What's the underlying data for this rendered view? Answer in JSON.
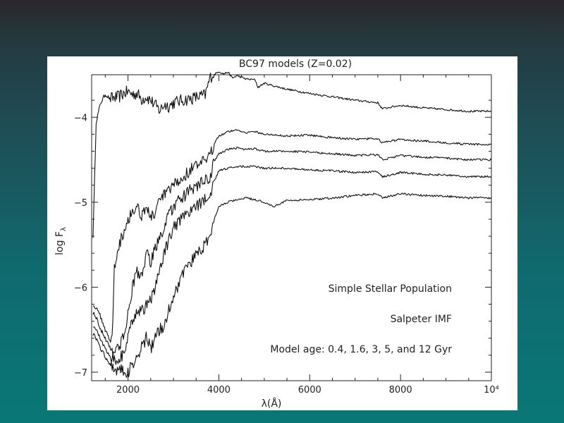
{
  "chart_data": {
    "type": "line",
    "title": "BC97 models (Z=0.02)",
    "xlabel": "λ(Å)",
    "ylabel": "log F",
    "ylabel_sub": "λ",
    "xlim": [
      1200,
      10000
    ],
    "ylim": [
      -7.1,
      -3.5
    ],
    "x_ticks": [
      {
        "value": 2000,
        "label": "2000"
      },
      {
        "value": 4000,
        "label": "4000"
      },
      {
        "value": 6000,
        "label": "6000"
      },
      {
        "value": 8000,
        "label": "8000"
      },
      {
        "value": 10000,
        "label": "10⁴"
      }
    ],
    "y_ticks": [
      {
        "value": -4,
        "label": "−4"
      },
      {
        "value": -5,
        "label": "−5"
      },
      {
        "value": -6,
        "label": "−6"
      },
      {
        "value": -7,
        "label": "−7"
      }
    ],
    "annotations": [
      "Simple Stellar Population",
      "Salpeter IMF",
      "Model age: 0.4, 1.6, 3, 5, and 12 Gyr"
    ],
    "series": [
      {
        "x": [
          1230,
          1300,
          1400,
          1500,
          1600,
          1700,
          1800,
          1900,
          2000,
          2100,
          2200,
          2300,
          2400,
          2500,
          2600,
          2700,
          2800,
          2900,
          3000,
          3200,
          3400,
          3600,
          3700,
          3800,
          3850,
          3900,
          4000,
          4100,
          4200,
          4300,
          4400,
          4600,
          4800,
          4861,
          5000,
          5200,
          5500,
          6000,
          6500,
          7000,
          7500,
          7600,
          8000,
          8500,
          9000,
          9500,
          10000
        ],
        "y": [
          -5.4,
          -4.05,
          -3.83,
          -3.73,
          -3.78,
          -3.77,
          -3.76,
          -3.72,
          -3.7,
          -3.73,
          -3.72,
          -3.79,
          -3.76,
          -3.8,
          -3.86,
          -3.92,
          -3.85,
          -3.87,
          -3.83,
          -3.8,
          -3.78,
          -3.75,
          -3.74,
          -3.55,
          -3.5,
          -3.5,
          -3.46,
          -3.49,
          -3.47,
          -3.54,
          -3.51,
          -3.55,
          -3.56,
          -3.65,
          -3.6,
          -3.63,
          -3.67,
          -3.72,
          -3.76,
          -3.8,
          -3.83,
          -3.9,
          -3.86,
          -3.89,
          -3.91,
          -3.93,
          -3.93
        ]
      },
      {
        "x": [
          1230,
          1300,
          1400,
          1500,
          1600,
          1650,
          1700,
          1750,
          1800,
          1900,
          2000,
          2100,
          2200,
          2300,
          2400,
          2500,
          2600,
          2700,
          2800,
          2900,
          3000,
          3200,
          3400,
          3600,
          3800,
          3900,
          4000,
          4200,
          4400,
          4600,
          4800,
          5000,
          5500,
          6000,
          6500,
          7000,
          7500,
          7600,
          8000,
          8500,
          9000,
          9500,
          10000
        ],
        "y": [
          -6.2,
          -6.25,
          -6.35,
          -6.5,
          -6.62,
          -6.6,
          -5.8,
          -5.6,
          -5.5,
          -5.35,
          -5.2,
          -5.1,
          -5.05,
          -5.15,
          -5.05,
          -5.18,
          -5.12,
          -5.0,
          -4.9,
          -4.88,
          -4.8,
          -4.72,
          -4.6,
          -4.55,
          -4.48,
          -4.3,
          -4.22,
          -4.17,
          -4.15,
          -4.18,
          -4.17,
          -4.2,
          -4.22,
          -4.21,
          -4.24,
          -4.26,
          -4.25,
          -4.3,
          -4.26,
          -4.28,
          -4.3,
          -4.32,
          -4.32
        ]
      },
      {
        "x": [
          1230,
          1300,
          1400,
          1500,
          1600,
          1700,
          1800,
          1900,
          2000,
          2100,
          2200,
          2300,
          2400,
          2500,
          2600,
          2700,
          2800,
          2900,
          3000,
          3200,
          3400,
          3600,
          3800,
          3900,
          4000,
          4200,
          4400,
          4600,
          4800,
          5000,
          5500,
          6000,
          6500,
          7000,
          7500,
          7600,
          8000,
          8500,
          9000,
          9500,
          10000
        ],
        "y": [
          -6.3,
          -6.35,
          -6.5,
          -6.6,
          -6.7,
          -6.75,
          -6.7,
          -6.6,
          -6.3,
          -6.0,
          -5.8,
          -5.9,
          -5.6,
          -5.7,
          -5.55,
          -5.4,
          -5.3,
          -5.15,
          -5.05,
          -4.95,
          -4.85,
          -4.78,
          -4.72,
          -4.52,
          -4.43,
          -4.38,
          -4.36,
          -4.38,
          -4.37,
          -4.4,
          -4.4,
          -4.41,
          -4.43,
          -4.45,
          -4.44,
          -4.5,
          -4.45,
          -4.47,
          -4.48,
          -4.5,
          -4.5
        ]
      },
      {
        "x": [
          1230,
          1300,
          1400,
          1500,
          1600,
          1700,
          1800,
          1900,
          2000,
          2100,
          2200,
          2300,
          2400,
          2500,
          2600,
          2700,
          2800,
          2900,
          3000,
          3200,
          3400,
          3600,
          3800,
          3900,
          4000,
          4200,
          4400,
          4600,
          4800,
          5000,
          5500,
          6000,
          6500,
          7000,
          7500,
          7600,
          8000,
          8500,
          9000,
          9500,
          10000
        ],
        "y": [
          -6.45,
          -6.5,
          -6.62,
          -6.72,
          -6.8,
          -6.85,
          -6.83,
          -6.8,
          -6.6,
          -6.4,
          -6.25,
          -6.3,
          -6.2,
          -6.15,
          -6.0,
          -5.8,
          -5.6,
          -5.45,
          -5.3,
          -5.2,
          -5.1,
          -5.0,
          -4.95,
          -4.75,
          -4.63,
          -4.6,
          -4.58,
          -4.58,
          -4.58,
          -4.6,
          -4.6,
          -4.62,
          -4.63,
          -4.65,
          -4.64,
          -4.7,
          -4.65,
          -4.67,
          -4.68,
          -4.7,
          -4.7
        ]
      },
      {
        "x": [
          1230,
          1300,
          1400,
          1500,
          1600,
          1700,
          1800,
          1900,
          2000,
          2100,
          2200,
          2300,
          2400,
          2500,
          2600,
          2700,
          2800,
          2900,
          3000,
          3200,
          3400,
          3600,
          3800,
          3900,
          4000,
          4200,
          4400,
          4600,
          4800,
          5000,
          5200,
          5500,
          6000,
          6500,
          7000,
          7500,
          7600,
          8000,
          8500,
          9000,
          9500,
          10000
        ],
        "y": [
          -6.55,
          -6.6,
          -6.72,
          -6.82,
          -6.9,
          -6.95,
          -6.97,
          -6.98,
          -7.02,
          -6.9,
          -6.8,
          -6.7,
          -6.6,
          -6.72,
          -6.6,
          -6.5,
          -6.45,
          -6.25,
          -6.1,
          -5.85,
          -5.7,
          -5.55,
          -5.45,
          -5.2,
          -5.05,
          -5.0,
          -4.97,
          -4.95,
          -4.97,
          -5.0,
          -5.05,
          -4.98,
          -4.97,
          -4.95,
          -4.92,
          -4.9,
          -4.95,
          -4.9,
          -4.92,
          -4.93,
          -4.95,
          -4.95
        ]
      }
    ]
  }
}
